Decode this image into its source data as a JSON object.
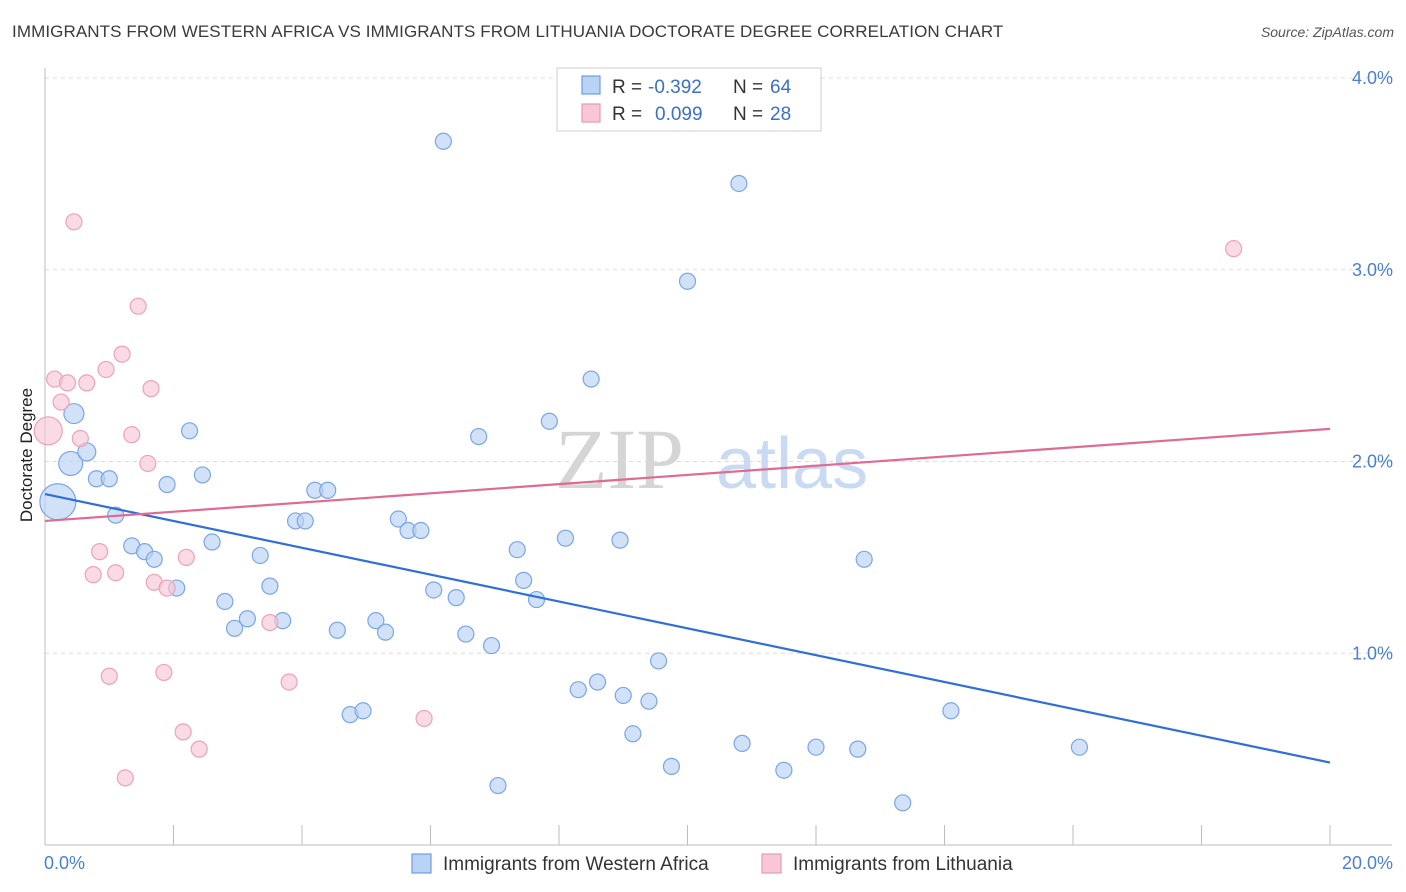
{
  "title": "IMMIGRANTS FROM WESTERN AFRICA VS IMMIGRANTS FROM LITHUANIA DOCTORATE DEGREE CORRELATION CHART",
  "source": "Source: ZipAtlas.com",
  "watermark": {
    "zip": "ZIP",
    "atlas": "atlas"
  },
  "colors": {
    "blue": "#4a86e8",
    "pink": "#e8739a",
    "blue_fill": "#b9d3f5",
    "pink_fill": "#f8c6d6",
    "tick": "#4a7fd4"
  },
  "legend": {
    "rows": [
      {
        "r_label": "R =",
        "r_value": "-0.392",
        "n_label": "N =",
        "n_value": "64",
        "color": "blue"
      },
      {
        "r_label": "R =",
        "r_value": "0.099",
        "n_label": "N =",
        "n_value": "28",
        "color": "pink"
      }
    ]
  },
  "chart_data": {
    "type": "scatter",
    "title": "IMMIGRANTS FROM WESTERN AFRICA VS IMMIGRANTS FROM LITHUANIA DOCTORATE DEGREE CORRELATION CHART",
    "xlabel": "",
    "ylabel": "Doctorate Degree",
    "xlim": [
      0,
      20
    ],
    "ylim": [
      0,
      4.1
    ],
    "x_tick_labels": [
      "0.0%",
      "20.0%"
    ],
    "y_ticks": [
      1,
      2,
      3,
      4
    ],
    "y_tick_labels": [
      "1.0%",
      "2.0%",
      "3.0%",
      "4.0%"
    ],
    "grid": true,
    "legend_position": "top-center",
    "series": [
      {
        "name": "Immigrants from Western Africa",
        "color": "blue",
        "trend": {
          "x": [
            0,
            20
          ],
          "y": [
            1.83,
            0.43
          ]
        },
        "points": [
          [
            0.2,
            1.79,
            18
          ],
          [
            0.4,
            1.99,
            12
          ],
          [
            0.45,
            2.25,
            10
          ],
          [
            0.65,
            2.05,
            9
          ],
          [
            0.8,
            1.91,
            8
          ],
          [
            1.0,
            1.91,
            8
          ],
          [
            1.1,
            1.72,
            8
          ],
          [
            1.35,
            1.56,
            8
          ],
          [
            1.55,
            1.53,
            8
          ],
          [
            1.7,
            1.49,
            8
          ],
          [
            1.9,
            1.88,
            8
          ],
          [
            2.05,
            1.34,
            8
          ],
          [
            2.25,
            2.16,
            8
          ],
          [
            2.45,
            1.93,
            8
          ],
          [
            2.6,
            1.58,
            8
          ],
          [
            2.8,
            1.27,
            8
          ],
          [
            2.95,
            1.13,
            8
          ],
          [
            3.15,
            1.18,
            8
          ],
          [
            3.35,
            1.51,
            8
          ],
          [
            3.5,
            1.35,
            8
          ],
          [
            3.7,
            1.17,
            8
          ],
          [
            3.9,
            1.69,
            8
          ],
          [
            4.05,
            1.69,
            8
          ],
          [
            4.2,
            1.85,
            8
          ],
          [
            4.4,
            1.85,
            8
          ],
          [
            4.55,
            1.12,
            8
          ],
          [
            4.75,
            0.68,
            8
          ],
          [
            4.95,
            0.7,
            8
          ],
          [
            5.15,
            1.17,
            8
          ],
          [
            5.3,
            1.11,
            8
          ],
          [
            5.5,
            1.7,
            8
          ],
          [
            5.65,
            1.64,
            8
          ],
          [
            5.85,
            1.64,
            8
          ],
          [
            6.05,
            1.33,
            8
          ],
          [
            6.2,
            3.67,
            8
          ],
          [
            6.4,
            1.29,
            8
          ],
          [
            6.55,
            1.1,
            8
          ],
          [
            6.75,
            2.13,
            8
          ],
          [
            6.95,
            1.04,
            8
          ],
          [
            7.05,
            0.31,
            8
          ],
          [
            7.35,
            1.54,
            8
          ],
          [
            7.45,
            1.38,
            8
          ],
          [
            7.65,
            1.28,
            8
          ],
          [
            7.85,
            2.21,
            8
          ],
          [
            8.1,
            1.6,
            8
          ],
          [
            8.3,
            0.81,
            8
          ],
          [
            8.5,
            2.43,
            8
          ],
          [
            8.6,
            0.85,
            8
          ],
          [
            8.95,
            1.59,
            8
          ],
          [
            9.0,
            0.78,
            8
          ],
          [
            9.15,
            0.58,
            8
          ],
          [
            9.4,
            0.75,
            8
          ],
          [
            9.55,
            0.96,
            8
          ],
          [
            9.75,
            0.41,
            8
          ],
          [
            10.0,
            2.94,
            8
          ],
          [
            10.8,
            3.45,
            8
          ],
          [
            10.85,
            0.53,
            8
          ],
          [
            11.5,
            0.39,
            8
          ],
          [
            12.0,
            0.51,
            8
          ],
          [
            12.65,
            0.5,
            8
          ],
          [
            12.75,
            1.49,
            8
          ],
          [
            13.35,
            0.22,
            8
          ],
          [
            14.1,
            0.7,
            8
          ],
          [
            16.1,
            0.51,
            8
          ]
        ]
      },
      {
        "name": "Immigrants from Lithuania",
        "color": "pink",
        "trend": {
          "x": [
            0,
            20
          ],
          "y": [
            1.69,
            2.17
          ]
        },
        "points": [
          [
            0.05,
            2.16,
            14
          ],
          [
            0.15,
            2.43,
            8
          ],
          [
            0.25,
            2.31,
            8
          ],
          [
            0.35,
            2.41,
            8
          ],
          [
            0.45,
            3.25,
            8
          ],
          [
            0.55,
            2.12,
            8
          ],
          [
            0.65,
            2.41,
            8
          ],
          [
            0.75,
            1.41,
            8
          ],
          [
            0.85,
            1.53,
            8
          ],
          [
            0.95,
            2.48,
            8
          ],
          [
            1.0,
            0.88,
            8
          ],
          [
            1.1,
            1.42,
            8
          ],
          [
            1.2,
            2.56,
            8
          ],
          [
            1.25,
            0.35,
            8
          ],
          [
            1.35,
            2.14,
            8
          ],
          [
            1.45,
            2.81,
            8
          ],
          [
            1.6,
            1.99,
            8
          ],
          [
            1.65,
            2.38,
            8
          ],
          [
            1.7,
            1.37,
            8
          ],
          [
            1.85,
            0.9,
            8
          ],
          [
            1.9,
            1.34,
            8
          ],
          [
            2.15,
            0.59,
            8
          ],
          [
            2.2,
            1.5,
            8
          ],
          [
            2.4,
            0.5,
            8
          ],
          [
            3.5,
            1.16,
            8
          ],
          [
            3.8,
            0.85,
            8
          ],
          [
            5.9,
            0.66,
            8
          ],
          [
            18.5,
            3.11,
            8
          ]
        ]
      }
    ]
  }
}
